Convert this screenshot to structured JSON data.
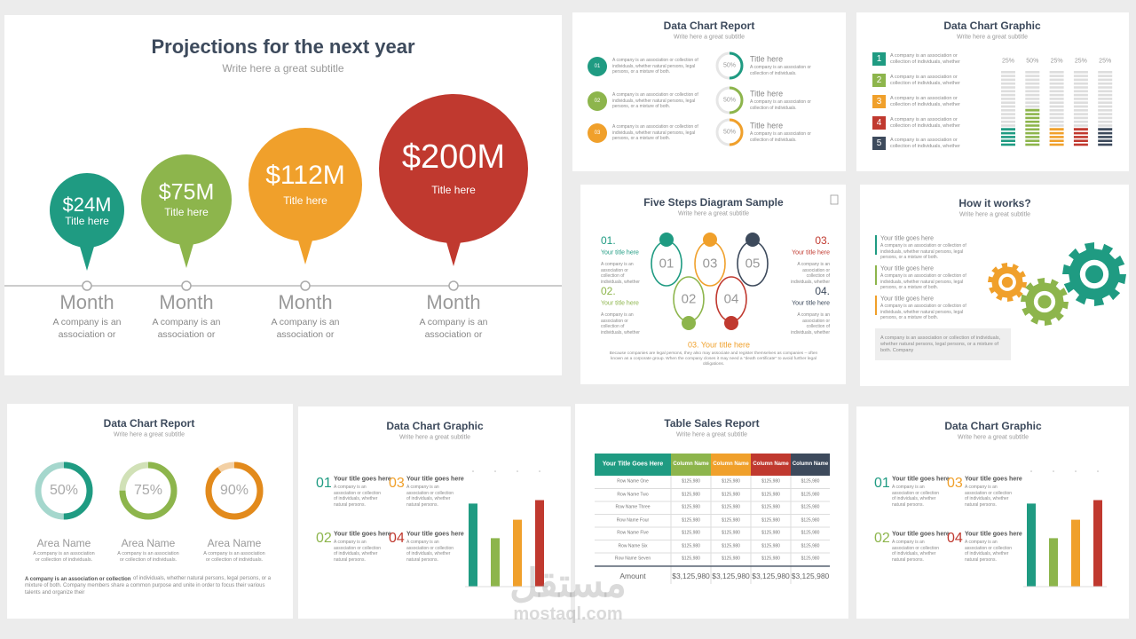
{
  "projections": {
    "title": "Projections for the next year",
    "subtitle": "Write here a great subtitle",
    "items": [
      {
        "amount": "$24M",
        "label": "Title here",
        "month": "Month",
        "text": "A company is an association or",
        "color": "#1f9b82"
      },
      {
        "amount": "$75M",
        "label": "Title here",
        "month": "Month",
        "text": "A company is an association or",
        "color": "#8db54c"
      },
      {
        "amount": "$112M",
        "label": "Title here",
        "month": "Month",
        "text": "A company is an association or",
        "color": "#f0a02b"
      },
      {
        "amount": "$200M",
        "label": "Title here",
        "month": "Month",
        "text": "A company is an association or",
        "color": "#c0392f"
      }
    ]
  },
  "report_top": {
    "title": "Data Chart Report",
    "subtitle": "Write here a great subtitle",
    "rows": [
      {
        "number": "01",
        "color": "#1f9b82",
        "text": "A company is an association or collection of individuals, whether natural persons, legal persons, or a mixture of both.",
        "ring": {
          "value": 50,
          "label": "50%"
        },
        "heading": "Title here",
        "text2": "A company is an association or collection of individuals."
      },
      {
        "number": "02",
        "color": "#8db54c",
        "text": "A company is an association or collection of individuals, whether natural persons, legal persons, or a mixture of both.",
        "ring": {
          "value": 50,
          "label": "50%"
        },
        "heading": "Title here",
        "text2": "A company is an association or collection of individuals."
      },
      {
        "number": "03",
        "color": "#f0a02b",
        "text": "A company is an association or collection of individuals, whether natural persons, legal persons, or a mixture of both.",
        "ring": {
          "value": 50,
          "label": "50%"
        },
        "heading": "Title here",
        "text2": "A company is an association or collection of individuals."
      }
    ]
  },
  "graphic_top": {
    "title": "Data Chart Graphic",
    "subtitle": "Write here a great subtitle",
    "rows": [
      {
        "number": "1",
        "color": "#1f9b82",
        "text": "A company is an association or collection of individuals, whether"
      },
      {
        "number": "2",
        "color": "#8db54c",
        "text": "A company is an association or collection of individuals, whether"
      },
      {
        "number": "3",
        "color": "#f0a02b",
        "text": "A company is an association or collection of individuals, whether"
      },
      {
        "number": "4",
        "color": "#c0392f",
        "text": "A company is an association or collection of individuals, whether"
      },
      {
        "number": "5",
        "color": "#3d4a5c",
        "text": "A company is an association or collection of individuals, whether"
      }
    ],
    "bars": [
      {
        "value": 25,
        "label": "25%",
        "color": "#1f9b82"
      },
      {
        "value": 50,
        "label": "50%",
        "color": "#8db54c"
      },
      {
        "value": 25,
        "label": "25%",
        "color": "#f0a02b"
      },
      {
        "value": 25,
        "label": "25%",
        "color": "#c0392f"
      },
      {
        "value": 25,
        "label": "25%",
        "color": "#3d4a5c"
      }
    ]
  },
  "five_steps": {
    "title": "Five Steps Diagram Sample",
    "subtitle": "Write here a great subtitle",
    "sides": [
      {
        "number": "01.",
        "heading": "Your title here",
        "text": "A company is an association or collection of individuals, whether",
        "color": "#1f9b82"
      },
      {
        "number": "02.",
        "heading": "Your title here",
        "text": "A company is an association or collection of individuals, whether",
        "color": "#8db54c"
      },
      {
        "number": "03.",
        "heading": "Your title here",
        "text": "A company is an association or collection of individuals, whether",
        "color": "#c0392f"
      },
      {
        "number": "04.",
        "heading": "Your title here",
        "text": "A company is an association or collection of individuals, whether",
        "color": "#3d4a5c"
      }
    ],
    "steps": [
      {
        "number": "01",
        "color": "#1f9b82"
      },
      {
        "number": "02",
        "color": "#8db54c"
      },
      {
        "number": "03",
        "color": "#f0a02b"
      },
      {
        "number": "04",
        "color": "#c0392f"
      },
      {
        "number": "05",
        "color": "#3d4a5c"
      }
    ],
    "bottom_heading": "03. Your title here",
    "bottom_text": "Because companies are legal persons, they also may associate and register themselves as companies – often known as a corporate group. When the company closes it may need a \"death certificate\" to avoid further legal obligations."
  },
  "how_it_works": {
    "title": "How it works?",
    "subtitle": "Write here a great subtitle",
    "items": [
      {
        "heading": "Your title goes here",
        "text": "A company is an association or collection of individuals, whether natural persons, legal persons, or a mixture of both.",
        "color": "#1f9b82"
      },
      {
        "heading": "Your title goes here",
        "text": "A company is an association or collection of individuals, whether natural persons, legal persons, or a mixture of both.",
        "color": "#8db54c"
      },
      {
        "heading": "Your title goes here",
        "text": "A company is an association or collection of individuals, whether natural persons, legal persons, or a mixture of both.",
        "color": "#f0a02b"
      }
    ],
    "note": "A company is an association or collection of individuals, whether natural persons, legal persons, or a mixture of both. Company"
  },
  "report_bottom": {
    "title": "Data Chart Report",
    "subtitle": "Write here a great subtitle",
    "donuts": [
      {
        "value": 50,
        "label": "50%",
        "name": "Area Name",
        "text": "A company is an association or collection of individuals.",
        "color": "#1f9b82"
      },
      {
        "value": 75,
        "label": "75%",
        "name": "Area Name",
        "text": "A company is an association or collection of individuals.",
        "color": "#8db54c"
      },
      {
        "value": 90,
        "label": "90%",
        "name": "Area Name",
        "text": "A company is an association or collection of individuals.",
        "color": "#e28a1c"
      }
    ],
    "lead": "A company is an association or collection",
    "paragraph": "of individuals, whether natural persons, legal persons, or a mixture of both. Company members share a common purpose and unite in order to focus their various talents and organize their"
  },
  "graphic_left": {
    "title": "Data Chart Graphic",
    "subtitle": "Write here a great subtitle",
    "items": [
      {
        "number": "01",
        "heading": "Your title goes here",
        "text": "A company is an association or collection of individuals, whether natural persons.",
        "color": "#1f9b82"
      },
      {
        "number": "03",
        "heading": "Your title goes here",
        "text": "A company is an association or collection of individuals, whether natural persons.",
        "color": "#f0a02b"
      },
      {
        "number": "02",
        "heading": "Your title goes here",
        "text": "A company is an association or collection of individuals, whether natural persons.",
        "color": "#8db54c"
      },
      {
        "number": "04",
        "heading": "Your title goes here",
        "text": "A company is an association or collection of individuals, whether natural persons.",
        "color": "#c0392f"
      }
    ],
    "bars": [
      {
        "value": 72,
        "color": "#1f9b82"
      },
      {
        "value": 42,
        "color": "#8db54c"
      },
      {
        "value": 58,
        "color": "#f0a02b"
      },
      {
        "value": 75,
        "color": "#c0392f"
      }
    ]
  },
  "table_sales": {
    "title": "Table Sales Report",
    "subtitle": "Write here a great subtitle",
    "header": [
      {
        "text": "Your Title Goes Here",
        "color": "#1f9b82"
      },
      {
        "text": "Column Name",
        "color": "#8db54c"
      },
      {
        "text": "Column Name",
        "color": "#f0a02b"
      },
      {
        "text": "Column Name",
        "color": "#c0392f"
      },
      {
        "text": "Column Name",
        "color": "#3d4a5c"
      }
    ],
    "rows": [
      [
        "Row Name One",
        "$125,980",
        "$125,980",
        "$125,980",
        "$125,980"
      ],
      [
        "Row Name Two",
        "$125,980",
        "$125,980",
        "$125,980",
        "$125,980"
      ],
      [
        "Row Name Three",
        "$125,980",
        "$125,980",
        "$125,980",
        "$125,980"
      ],
      [
        "Row Name Four",
        "$125,980",
        "$125,980",
        "$125,980",
        "$125,980"
      ],
      [
        "Row Name Five",
        "$125,980",
        "$125,980",
        "$125,980",
        "$125,980"
      ],
      [
        "Row Name Six",
        "$125,980",
        "$125,980",
        "$125,980",
        "$125,980"
      ],
      [
        "Row Name Seven",
        "$125,980",
        "$125,980",
        "$125,980",
        "$125,980"
      ]
    ],
    "total": [
      "Amount",
      "$3,125,980",
      "$3,125,980",
      "$3,125,980",
      "$3,125,980"
    ]
  },
  "graphic_right": {
    "title": "Data Chart Graphic",
    "subtitle": "Write here a great subtitle",
    "items": [
      {
        "number": "01",
        "heading": "Your title goes here",
        "text": "A company is an association or collection of individuals, whether natural persons.",
        "color": "#1f9b82"
      },
      {
        "number": "03",
        "heading": "Your title goes here",
        "text": "A company is an association or collection of individuals, whether natural persons.",
        "color": "#f0a02b"
      },
      {
        "number": "02",
        "heading": "Your title goes here",
        "text": "A company is an association or collection of individuals, whether natural persons.",
        "color": "#8db54c"
      },
      {
        "number": "04",
        "heading": "Your title goes here",
        "text": "A company is an association or collection of individuals, whether natural persons.",
        "color": "#c0392f"
      }
    ],
    "bars": [
      {
        "value": 72,
        "color": "#1f9b82"
      },
      {
        "value": 42,
        "color": "#8db54c"
      },
      {
        "value": 58,
        "color": "#f0a02b"
      },
      {
        "value": 75,
        "color": "#c0392f"
      }
    ]
  },
  "watermark": {
    "arabic": "مستقل",
    "latin": "mostaql.com"
  }
}
